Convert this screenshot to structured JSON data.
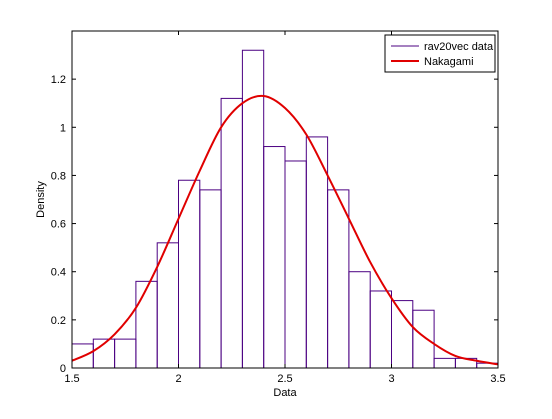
{
  "chart_data": {
    "type": "bar",
    "xlabel": "Data",
    "ylabel": "Density",
    "xlim": [
      1.5,
      3.5
    ],
    "ylim": [
      0,
      1.4
    ],
    "grid": false,
    "legend_position": "top-right",
    "x_ticks": [
      1.5,
      2,
      2.5,
      3,
      3.5
    ],
    "x_tick_labels": [
      "1.5",
      "2",
      "2.5",
      "3",
      "3.5"
    ],
    "y_ticks": [
      0,
      0.2,
      0.4,
      0.6,
      0.8,
      1,
      1.2
    ],
    "y_tick_labels": [
      "0",
      "0.2",
      "0.4",
      "0.6",
      "0.8",
      "1",
      "1.2"
    ],
    "series": [
      {
        "name": "rav20vec data",
        "kind": "histogram",
        "color": "#4b0082",
        "bin_edges": [
          1.5,
          1.6,
          1.7,
          1.8,
          1.9,
          2.0,
          2.1,
          2.2,
          2.3,
          2.4,
          2.5,
          2.6,
          2.7,
          2.8,
          2.9,
          3.0,
          3.1,
          3.2,
          3.3,
          3.4,
          3.5
        ],
        "values": [
          0.1,
          0.12,
          0.12,
          0.36,
          0.52,
          0.78,
          0.74,
          1.12,
          1.32,
          0.92,
          0.86,
          0.96,
          0.74,
          0.4,
          0.32,
          0.28,
          0.24,
          0.04,
          0.04,
          0.02
        ]
      },
      {
        "name": "Nakagami",
        "kind": "line",
        "color": "#e00000",
        "x": [
          1.5,
          1.6,
          1.7,
          1.8,
          1.9,
          2.0,
          2.1,
          2.2,
          2.3,
          2.4,
          2.5,
          2.6,
          2.7,
          2.8,
          2.9,
          3.0,
          3.1,
          3.2,
          3.3,
          3.4,
          3.5
        ],
        "y": [
          0.03,
          0.07,
          0.14,
          0.25,
          0.42,
          0.62,
          0.82,
          1.0,
          1.1,
          1.13,
          1.08,
          0.97,
          0.8,
          0.62,
          0.44,
          0.29,
          0.17,
          0.1,
          0.05,
          0.03,
          0.015
        ]
      }
    ]
  }
}
